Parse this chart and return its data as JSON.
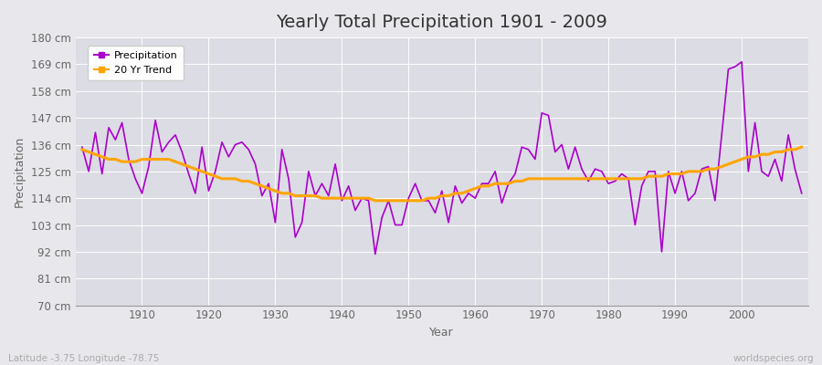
{
  "title": "Yearly Total Precipitation 1901 - 2009",
  "xlabel": "Year",
  "ylabel": "Precipitation",
  "footer_left": "Latitude -3.75 Longitude -78.75",
  "footer_right": "worldspecies.org",
  "line_color": "#AA00CC",
  "trend_color": "#FFA500",
  "background_color": "#E8E8EC",
  "plot_bg_color": "#DCDCE4",
  "ylim": [
    70,
    180
  ],
  "yticks": [
    70,
    81,
    92,
    103,
    114,
    125,
    136,
    147,
    158,
    169,
    180
  ],
  "ytick_labels": [
    "70 cm",
    "81 cm",
    "92 cm",
    "103 cm",
    "114 cm",
    "125 cm",
    "136 cm",
    "147 cm",
    "158 cm",
    "169 cm",
    "180 cm"
  ],
  "years": [
    1901,
    1902,
    1903,
    1904,
    1905,
    1906,
    1907,
    1908,
    1909,
    1910,
    1911,
    1912,
    1913,
    1914,
    1915,
    1916,
    1917,
    1918,
    1919,
    1920,
    1921,
    1922,
    1923,
    1924,
    1925,
    1926,
    1927,
    1928,
    1929,
    1930,
    1931,
    1932,
    1933,
    1934,
    1935,
    1936,
    1937,
    1938,
    1939,
    1940,
    1941,
    1942,
    1943,
    1944,
    1945,
    1946,
    1947,
    1948,
    1949,
    1950,
    1951,
    1952,
    1953,
    1954,
    1955,
    1956,
    1957,
    1958,
    1959,
    1960,
    1961,
    1962,
    1963,
    1964,
    1965,
    1966,
    1967,
    1968,
    1969,
    1970,
    1971,
    1972,
    1973,
    1974,
    1975,
    1976,
    1977,
    1978,
    1979,
    1980,
    1981,
    1982,
    1983,
    1984,
    1985,
    1986,
    1987,
    1988,
    1989,
    1990,
    1991,
    1992,
    1993,
    1994,
    1995,
    1996,
    1997,
    1998,
    1999,
    2000,
    2001,
    2002,
    2003,
    2004,
    2005,
    2006,
    2007,
    2008,
    2009
  ],
  "precip": [
    135,
    125,
    141,
    124,
    143,
    138,
    145,
    130,
    122,
    116,
    127,
    146,
    133,
    137,
    140,
    133,
    124,
    116,
    135,
    117,
    125,
    137,
    131,
    136,
    137,
    134,
    128,
    115,
    120,
    104,
    134,
    122,
    98,
    104,
    125,
    115,
    120,
    115,
    128,
    113,
    119,
    109,
    114,
    113,
    91,
    106,
    113,
    103,
    103,
    114,
    120,
    113,
    113,
    108,
    117,
    104,
    119,
    112,
    116,
    114,
    120,
    120,
    125,
    112,
    120,
    124,
    135,
    134,
    130,
    149,
    148,
    133,
    136,
    126,
    135,
    126,
    121,
    126,
    125,
    120,
    121,
    124,
    122,
    103,
    119,
    125,
    125,
    92,
    125,
    116,
    125,
    113,
    116,
    126,
    127,
    113,
    140,
    167,
    168,
    170,
    125,
    145,
    125,
    123,
    130,
    121,
    140,
    126,
    116
  ],
  "trend": [
    134,
    133,
    132,
    131,
    130,
    130,
    129,
    129,
    129,
    130,
    130,
    130,
    130,
    130,
    129,
    128,
    127,
    126,
    125,
    124,
    123,
    122,
    122,
    122,
    121,
    121,
    120,
    119,
    118,
    117,
    116,
    116,
    115,
    115,
    115,
    115,
    114,
    114,
    114,
    114,
    114,
    114,
    114,
    114,
    113,
    113,
    113,
    113,
    113,
    113,
    113,
    113,
    114,
    114,
    115,
    115,
    116,
    116,
    117,
    118,
    119,
    119,
    120,
    120,
    120,
    121,
    121,
    122,
    122,
    122,
    122,
    122,
    122,
    122,
    122,
    122,
    122,
    122,
    122,
    122,
    122,
    122,
    122,
    122,
    122,
    123,
    123,
    123,
    124,
    124,
    124,
    125,
    125,
    125,
    126,
    126,
    127,
    128,
    129,
    130,
    131,
    131,
    132,
    132,
    133,
    133,
    134,
    134,
    135
  ]
}
